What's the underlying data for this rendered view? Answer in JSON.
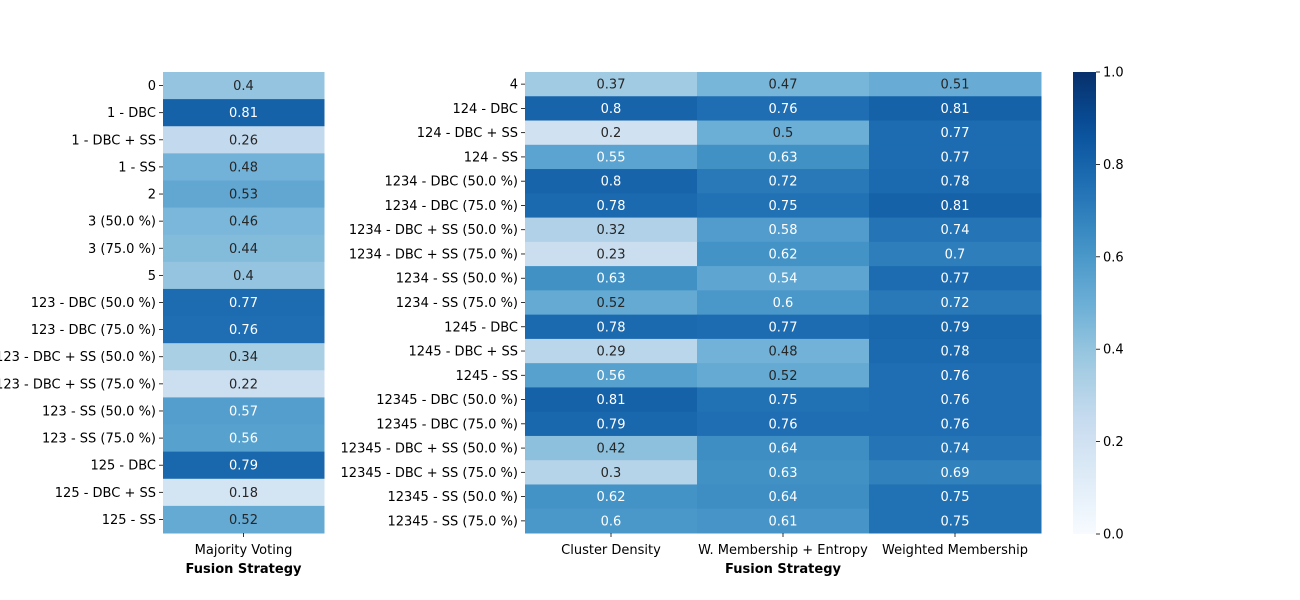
{
  "chart_data": [
    {
      "type": "heatmap",
      "xlabel": "Fusion Strategy",
      "columns": [
        "Majority Voting"
      ],
      "rows": [
        "0",
        "1 - DBC",
        "1 - DBC + SS",
        "1 - SS",
        "2",
        "3 (50.0 %)",
        "3 (75.0 %)",
        "5",
        "123 - DBC (50.0 %)",
        "123 - DBC (75.0 %)",
        "123 - DBC + SS (50.0 %)",
        "123 - DBC + SS (75.0 %)",
        "123 - SS (50.0 %)",
        "123 - SS (75.0 %)",
        "125 - DBC",
        "125 - DBC + SS",
        "125 - SS"
      ],
      "values": [
        [
          0.4
        ],
        [
          0.81
        ],
        [
          0.26
        ],
        [
          0.48
        ],
        [
          0.53
        ],
        [
          0.46
        ],
        [
          0.44
        ],
        [
          0.4
        ],
        [
          0.77
        ],
        [
          0.76
        ],
        [
          0.34
        ],
        [
          0.22
        ],
        [
          0.57
        ],
        [
          0.56
        ],
        [
          0.79
        ],
        [
          0.18
        ],
        [
          0.52
        ]
      ],
      "vmin": 0,
      "vmax": 1,
      "colormap": "Blues"
    },
    {
      "type": "heatmap",
      "xlabel": "Fusion Strategy",
      "columns": [
        "Cluster Density",
        "W. Membership + Entropy",
        "Weighted Membership"
      ],
      "rows": [
        "4",
        "124 - DBC",
        "124 - DBC + SS",
        "124 - SS",
        "1234 - DBC (50.0 %)",
        "1234 - DBC (75.0 %)",
        "1234 - DBC + SS (50.0 %)",
        "1234 - DBC + SS (75.0 %)",
        "1234 - SS (50.0 %)",
        "1234 - SS (75.0 %)",
        "1245 - DBC",
        "1245 - DBC + SS",
        "1245 - SS",
        "12345 - DBC (50.0 %)",
        "12345 - DBC (75.0 %)",
        "12345 - DBC + SS (50.0 %)",
        "12345 - DBC + SS (75.0 %)",
        "12345 - SS (50.0 %)",
        "12345 - SS (75.0 %)"
      ],
      "values": [
        [
          0.37,
          0.47,
          0.51
        ],
        [
          0.8,
          0.76,
          0.81
        ],
        [
          0.2,
          0.5,
          0.77
        ],
        [
          0.55,
          0.63,
          0.77
        ],
        [
          0.8,
          0.72,
          0.78
        ],
        [
          0.78,
          0.75,
          0.81
        ],
        [
          0.32,
          0.58,
          0.74
        ],
        [
          0.23,
          0.62,
          0.7
        ],
        [
          0.63,
          0.54,
          0.77
        ],
        [
          0.52,
          0.6,
          0.72
        ],
        [
          0.78,
          0.77,
          0.79
        ],
        [
          0.29,
          0.48,
          0.78
        ],
        [
          0.56,
          0.52,
          0.76
        ],
        [
          0.81,
          0.75,
          0.76
        ],
        [
          0.79,
          0.76,
          0.76
        ],
        [
          0.42,
          0.64,
          0.74
        ],
        [
          0.3,
          0.63,
          0.69
        ],
        [
          0.62,
          0.64,
          0.75
        ],
        [
          0.6,
          0.61,
          0.75
        ]
      ],
      "vmin": 0,
      "vmax": 1,
      "colormap": "Blues"
    }
  ],
  "colorbar": {
    "ticks": [
      "0.0",
      "0.2",
      "0.4",
      "0.6",
      "0.8",
      "1.0"
    ],
    "tick_values": [
      0,
      0.2,
      0.4,
      0.6,
      0.8,
      1.0
    ]
  }
}
